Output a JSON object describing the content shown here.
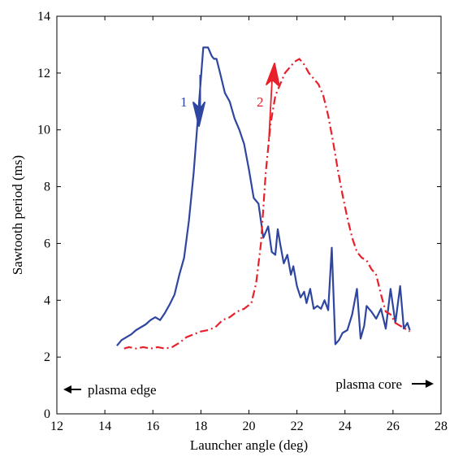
{
  "chart_data": {
    "type": "line",
    "title": "",
    "xlabel": "Launcher angle (deg)",
    "ylabel": "Sawtooth period (ms)",
    "xlim": [
      12,
      28
    ],
    "ylim": [
      0,
      14
    ],
    "xticks": [
      "12",
      "14",
      "16",
      "18",
      "20",
      "22",
      "24",
      "26",
      "28"
    ],
    "yticks": [
      "0",
      "2",
      "4",
      "6",
      "8",
      "10",
      "12",
      "14"
    ],
    "grid": false,
    "annotations": {
      "left": "plasma edge",
      "right": "plasma core",
      "series1_label": "1",
      "series2_label": "2"
    },
    "series": [
      {
        "style": "solid",
        "color": "#2E46A0",
        "x": [
          14.5,
          14.6,
          14.7,
          14.9,
          15.1,
          15.3,
          15.5,
          15.7,
          15.9,
          16.1,
          16.3,
          16.5,
          16.7,
          16.9,
          17.1,
          17.3,
          17.5,
          17.7,
          17.9,
          18.1,
          18.3,
          18.45,
          18.55,
          18.65,
          18.8,
          19.0,
          19.2,
          19.4,
          19.6,
          19.8,
          20.0,
          20.2,
          20.4,
          20.6,
          20.8,
          20.95,
          21.1,
          21.2,
          21.3,
          21.45,
          21.6,
          21.75,
          21.85,
          22.0,
          22.15,
          22.3,
          22.4,
          22.55,
          22.7,
          22.85,
          23.0,
          23.15,
          23.3,
          23.45,
          23.6,
          23.75,
          23.9,
          24.1,
          24.3,
          24.5,
          24.65,
          24.8,
          24.9,
          25.1,
          25.3,
          25.5,
          25.7,
          25.9,
          26.1,
          26.3,
          26.45,
          26.6,
          26.7
        ],
        "values": [
          2.4,
          2.5,
          2.6,
          2.7,
          2.8,
          2.95,
          3.05,
          3.15,
          3.3,
          3.4,
          3.3,
          3.55,
          3.85,
          4.2,
          4.9,
          5.5,
          6.8,
          8.5,
          10.7,
          12.9,
          12.9,
          12.6,
          12.5,
          12.5,
          12.0,
          11.3,
          11.0,
          10.4,
          10.0,
          9.5,
          8.6,
          7.6,
          7.4,
          6.2,
          6.6,
          5.7,
          5.6,
          6.5,
          6.0,
          5.3,
          5.6,
          4.9,
          5.2,
          4.5,
          4.1,
          4.3,
          3.9,
          4.4,
          3.7,
          3.8,
          3.7,
          4.0,
          3.65,
          5.85,
          2.45,
          2.6,
          2.85,
          2.95,
          3.5,
          4.4,
          2.65,
          3.1,
          3.8,
          3.6,
          3.35,
          3.7,
          3.0,
          4.4,
          3.2,
          4.5,
          3.0,
          3.2,
          2.95
        ],
        "xlim_used": [
          14.5,
          26.7
        ]
      },
      {
        "style": "dash-dot",
        "color": "#E8202A",
        "x": [
          14.8,
          15.0,
          15.3,
          15.6,
          15.9,
          16.2,
          16.5,
          16.8,
          17.1,
          17.4,
          17.7,
          18.0,
          18.3,
          18.6,
          18.9,
          19.2,
          19.5,
          19.8,
          20.1,
          20.3,
          20.5,
          20.7,
          20.9,
          21.1,
          21.3,
          21.5,
          21.7,
          21.9,
          22.1,
          22.3,
          22.5,
          22.7,
          22.9,
          23.1,
          23.3,
          23.5,
          23.7,
          23.9,
          24.1,
          24.3,
          24.5,
          24.7,
          24.9,
          25.1,
          25.3,
          25.5,
          25.7,
          25.9,
          26.1,
          26.3,
          26.5,
          26.7
        ],
        "values": [
          2.3,
          2.35,
          2.3,
          2.35,
          2.3,
          2.35,
          2.3,
          2.35,
          2.5,
          2.7,
          2.8,
          2.9,
          2.95,
          3.05,
          3.3,
          3.4,
          3.6,
          3.7,
          3.9,
          4.6,
          6.0,
          8.5,
          10.2,
          11.2,
          11.6,
          12.0,
          12.2,
          12.4,
          12.5,
          12.3,
          12.0,
          11.8,
          11.6,
          11.2,
          10.5,
          9.6,
          8.6,
          7.7,
          6.9,
          6.2,
          5.7,
          5.5,
          5.4,
          5.1,
          4.9,
          4.2,
          3.6,
          3.5,
          3.2,
          3.1,
          3.0,
          2.9
        ]
      }
    ]
  }
}
